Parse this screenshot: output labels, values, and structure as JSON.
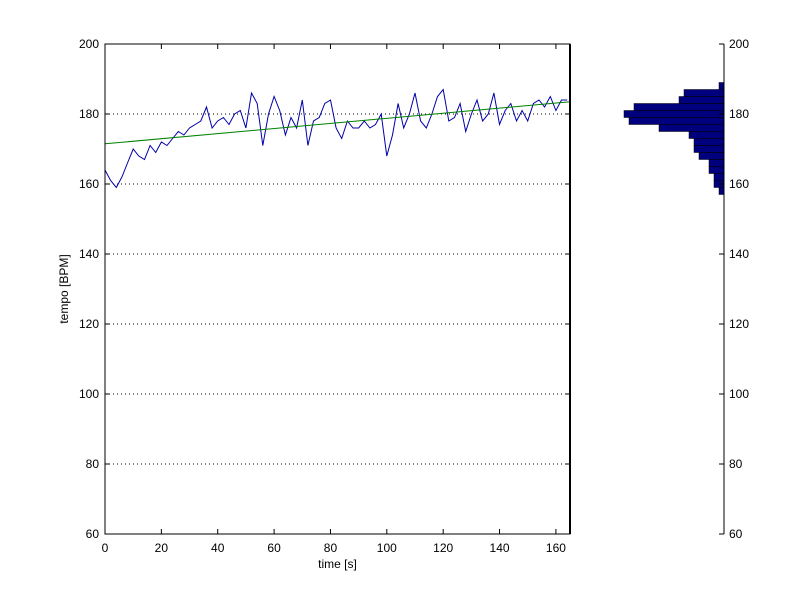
{
  "chart_data": [
    {
      "type": "line",
      "title": "",
      "xlabel": "time [s]",
      "ylabel": "tempo [BPM]",
      "xlim": [
        0,
        165
      ],
      "ylim": [
        60,
        200
      ],
      "xticks": [
        0,
        20,
        40,
        60,
        80,
        100,
        120,
        140,
        160
      ],
      "yticks": [
        60,
        80,
        100,
        120,
        140,
        160,
        180,
        200
      ],
      "grid": "horizontal dotted",
      "series": [
        {
          "style": "tempo-curve",
          "color": "#0000aa",
          "x": [
            0,
            2,
            4,
            6,
            8,
            10,
            12,
            14,
            16,
            18,
            20,
            22,
            24,
            26,
            28,
            30,
            32,
            34,
            36,
            38,
            40,
            42,
            44,
            46,
            48,
            50,
            52,
            54,
            56,
            58,
            60,
            62,
            64,
            66,
            68,
            70,
            72,
            74,
            76,
            78,
            80,
            82,
            84,
            86,
            88,
            90,
            92,
            94,
            96,
            98,
            100,
            102,
            104,
            106,
            108,
            110,
            112,
            114,
            116,
            118,
            120,
            122,
            124,
            126,
            128,
            130,
            132,
            134,
            136,
            138,
            140,
            142,
            144,
            146,
            148,
            150,
            152,
            154,
            156,
            158,
            160,
            162,
            164
          ],
          "y": [
            164,
            161,
            159,
            162,
            166,
            170,
            168,
            167,
            171,
            169,
            172,
            171,
            173,
            175,
            174,
            176,
            177,
            178,
            182,
            176,
            178,
            179,
            177,
            180,
            181,
            176,
            186,
            183,
            171,
            180,
            185,
            181,
            174,
            179,
            176,
            184,
            171,
            178,
            179,
            183,
            184,
            176,
            173,
            178,
            176,
            176,
            178,
            176,
            177,
            180,
            168,
            174,
            183,
            176,
            180,
            186,
            178,
            176,
            180,
            185,
            187,
            178,
            179,
            183,
            175,
            180,
            184,
            178,
            180,
            186,
            177,
            181,
            183,
            178,
            181,
            178,
            183,
            184,
            182,
            185,
            181,
            184,
            184
          ]
        },
        {
          "style": "trend-line",
          "color": "#008000",
          "x": [
            0,
            165
          ],
          "y": [
            171.5,
            183.5
          ]
        }
      ]
    },
    {
      "type": "bar",
      "orientation": "horizontal",
      "title": "",
      "ylim": [
        60,
        200
      ],
      "yticks": [
        60,
        80,
        100,
        120,
        140,
        160,
        180,
        200
      ],
      "color": "#00007f",
      "bin_width": 2,
      "bin_centers": [
        158,
        160,
        162,
        164,
        166,
        168,
        170,
        172,
        174,
        176,
        178,
        180,
        182,
        184,
        186,
        188
      ],
      "counts": [
        1,
        2,
        2,
        3,
        3,
        5,
        6,
        6,
        7,
        13,
        19,
        20,
        18,
        9,
        8,
        1
      ]
    }
  ]
}
